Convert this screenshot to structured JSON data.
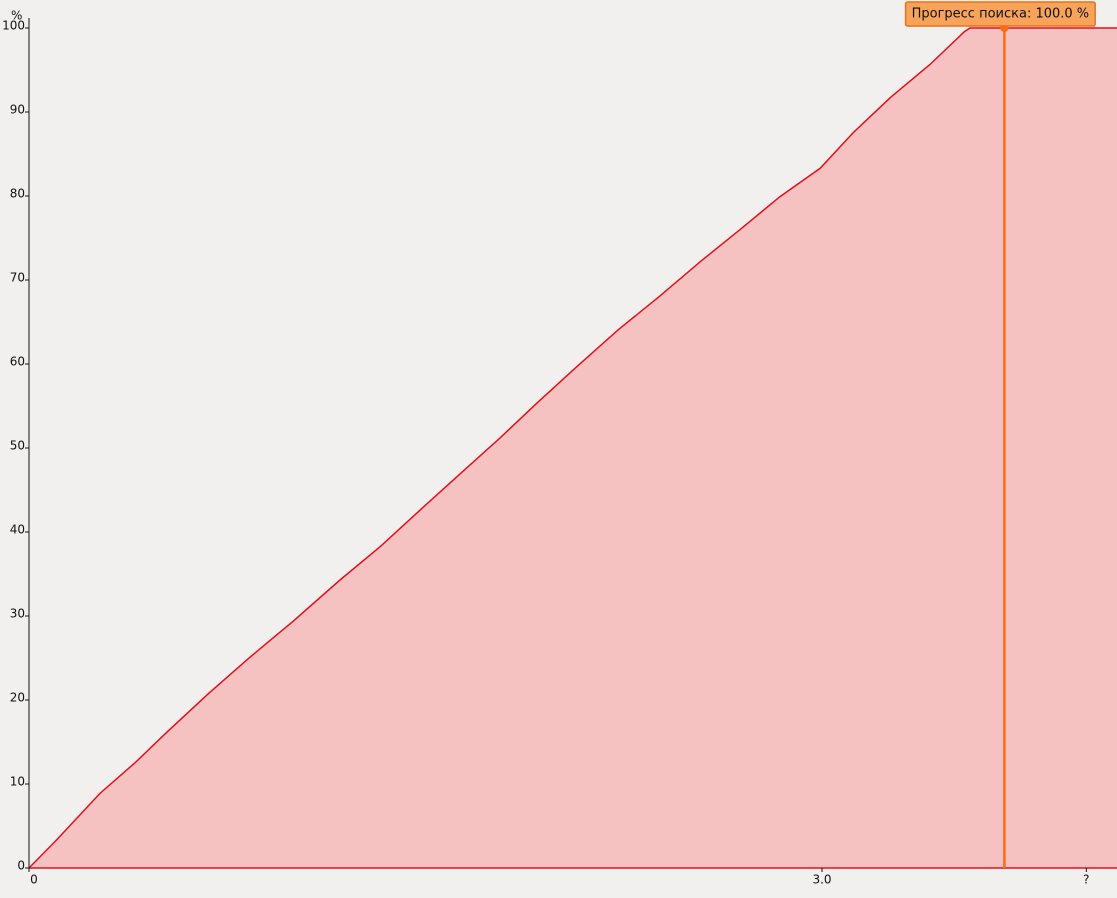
{
  "chart_data": {
    "type": "area",
    "y_label": "%",
    "x": [
      0,
      0.1,
      0.269,
      0.4,
      0.526,
      0.68,
      0.836,
      1.0,
      1.177,
      1.33,
      1.479,
      1.63,
      1.782,
      1.92,
      2.066,
      2.23,
      2.387,
      2.54,
      2.69,
      2.84,
      2.993,
      3.12,
      3.258,
      3.41,
      3.54,
      3.56,
      3.69,
      4.116
    ],
    "values": [
      0,
      3.2,
      8.9,
      12.5,
      16.3,
      20.8,
      25.1,
      29.4,
      34.3,
      38.3,
      42.6,
      46.9,
      51.2,
      55.3,
      59.5,
      64.1,
      68.1,
      72.2,
      76.0,
      79.9,
      83.3,
      87.6,
      91.7,
      95.7,
      99.6,
      100,
      100,
      100
    ],
    "color": "#e3101a",
    "fill": "#f5c1c1",
    "xlim": [
      0,
      4.116
    ],
    "xticks": [
      0,
      {
        "value": 3,
        "label": "3.0"
      },
      {
        "value": 4,
        "label": "?"
      }
    ],
    "ylim": [
      0,
      100
    ],
    "yticks": [
      0,
      10,
      20,
      30,
      40,
      50,
      60,
      70,
      80,
      90,
      100
    ],
    "annotation": {
      "text": "Прогресс поиска: 100.0 %",
      "x": 3.69,
      "y": 100,
      "color": "#ff6a13"
    }
  }
}
